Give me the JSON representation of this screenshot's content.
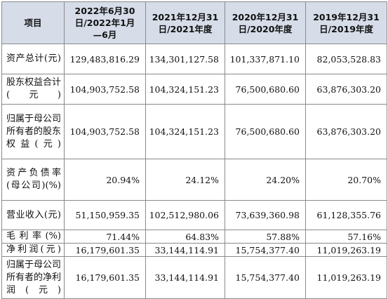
{
  "table": {
    "headers": [
      "项目",
      "2022年6月30日/2022年1月—6月",
      "2021年12月31日/2021年度",
      "2020年12月31日/2020年度",
      "2019年12月31日/2019年度"
    ],
    "rows": [
      {
        "label": "资产总计(元)",
        "values": [
          "129,483,816.29",
          "134,301,127.58",
          "101,337,871.10",
          "82,053,528.83"
        ]
      },
      {
        "label": "股东权益合计(元)",
        "values": [
          "104,903,752.58",
          "104,324,151.23",
          "76,500,680.60",
          "63,876,303.20"
        ]
      },
      {
        "label": "归属于母公司所有者的股东权益(元)",
        "values": [
          "104,903,752.58",
          "104,324,151.23",
          "76,500,680.60",
          "63,876,303.20"
        ]
      },
      {
        "label": "资产负债率(母公司)(%)",
        "values": [
          "20.94%",
          "24.12%",
          "24.20%",
          "20.70%"
        ]
      },
      {
        "label": "营业收入(元)",
        "values": [
          "51,150,959.35",
          "102,512,980.06",
          "73,639,360.98",
          "61,128,355.76"
        ]
      },
      {
        "label": "毛利率(%)",
        "values": [
          "71.44%",
          "64.83%",
          "57.88%",
          "57.16%"
        ]
      },
      {
        "label": "净利润(元)",
        "values": [
          "16,179,601.35",
          "33,144,114.91",
          "15,754,377.40",
          "11,019,263.19"
        ]
      },
      {
        "label": "归属于母公司所有者的净利润(元)",
        "values": [
          "16,179,601.35",
          "33,144,114.91",
          "15,754,377.40",
          "11,019,263.19"
        ]
      }
    ]
  }
}
